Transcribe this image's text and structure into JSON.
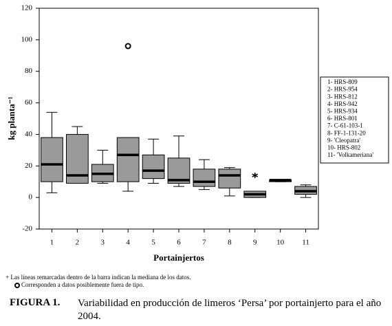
{
  "chart_data": {
    "type": "boxplot",
    "x_label": "Portainjertos",
    "y_label": "kg planta⁻¹",
    "categories": [
      "1",
      "2",
      "3",
      "4",
      "5",
      "6",
      "7",
      "8",
      "9",
      "10",
      "11"
    ],
    "boxes": [
      {
        "whislo": 3,
        "q1": 10,
        "med": 21,
        "q3": 38,
        "whishi": 54,
        "fliers": [],
        "extremes": []
      },
      {
        "whislo": 9,
        "q1": 9,
        "med": 14,
        "q3": 40,
        "whishi": 45,
        "fliers": [],
        "extremes": []
      },
      {
        "whislo": 9,
        "q1": 10,
        "med": 15,
        "q3": 21,
        "whishi": 30,
        "fliers": [],
        "extremes": []
      },
      {
        "whislo": 4,
        "q1": 10,
        "med": 27,
        "q3": 38,
        "whishi": 38,
        "fliers": [
          96
        ],
        "extremes": []
      },
      {
        "whislo": 9,
        "q1": 12,
        "med": 17,
        "q3": 27,
        "whishi": 37,
        "fliers": [],
        "extremes": []
      },
      {
        "whislo": 7,
        "q1": 9,
        "med": 11,
        "q3": 25,
        "whishi": 39,
        "fliers": [],
        "extremes": []
      },
      {
        "whislo": 5,
        "q1": 7,
        "med": 10,
        "q3": 18,
        "whishi": 24,
        "fliers": [],
        "extremes": []
      },
      {
        "whislo": 1,
        "q1": 6,
        "med": 14,
        "q3": 18,
        "whishi": 19,
        "fliers": [],
        "extremes": []
      },
      {
        "whislo": 0,
        "q1": 0,
        "med": 2,
        "q3": 4,
        "whishi": 4,
        "fliers": [],
        "extremes": [
          14
        ]
      },
      {
        "whislo": 10,
        "q1": 10,
        "med": 11,
        "q3": 11,
        "whishi": 11,
        "fliers": [],
        "extremes": []
      },
      {
        "whislo": 0,
        "q1": 2,
        "med": 4,
        "q3": 7,
        "whishi": 8,
        "fliers": [],
        "extremes": []
      }
    ],
    "color": "#9a9a9a",
    "ylim": [
      -20,
      120
    ],
    "yticks": [
      -20,
      0,
      20,
      40,
      60,
      80,
      100,
      120
    ],
    "legend": {
      "position": "right",
      "entries": [
        "1- HRS-809",
        "2- HRS-954",
        "3- HRS-812",
        "4- HRS-942",
        "5- HRS-934",
        "6- HRS-801",
        "7- C-61-103-1",
        "8- FF-1-131-20",
        "9- 'Cleopatra'",
        "10- HRS-802",
        "11- 'Volkameriana'"
      ]
    },
    "footnotes": [
      "+ Las líneas remarcadas dentro de la barra indican la mediana de los datos.",
      "Corresponden a datos posiblemente fuera de tipo."
    ]
  },
  "caption": {
    "label": "FIGURA 1.",
    "text": "Variabilidad en producción de limeros ‘Persa’ por portainjerto para el año 2004."
  }
}
